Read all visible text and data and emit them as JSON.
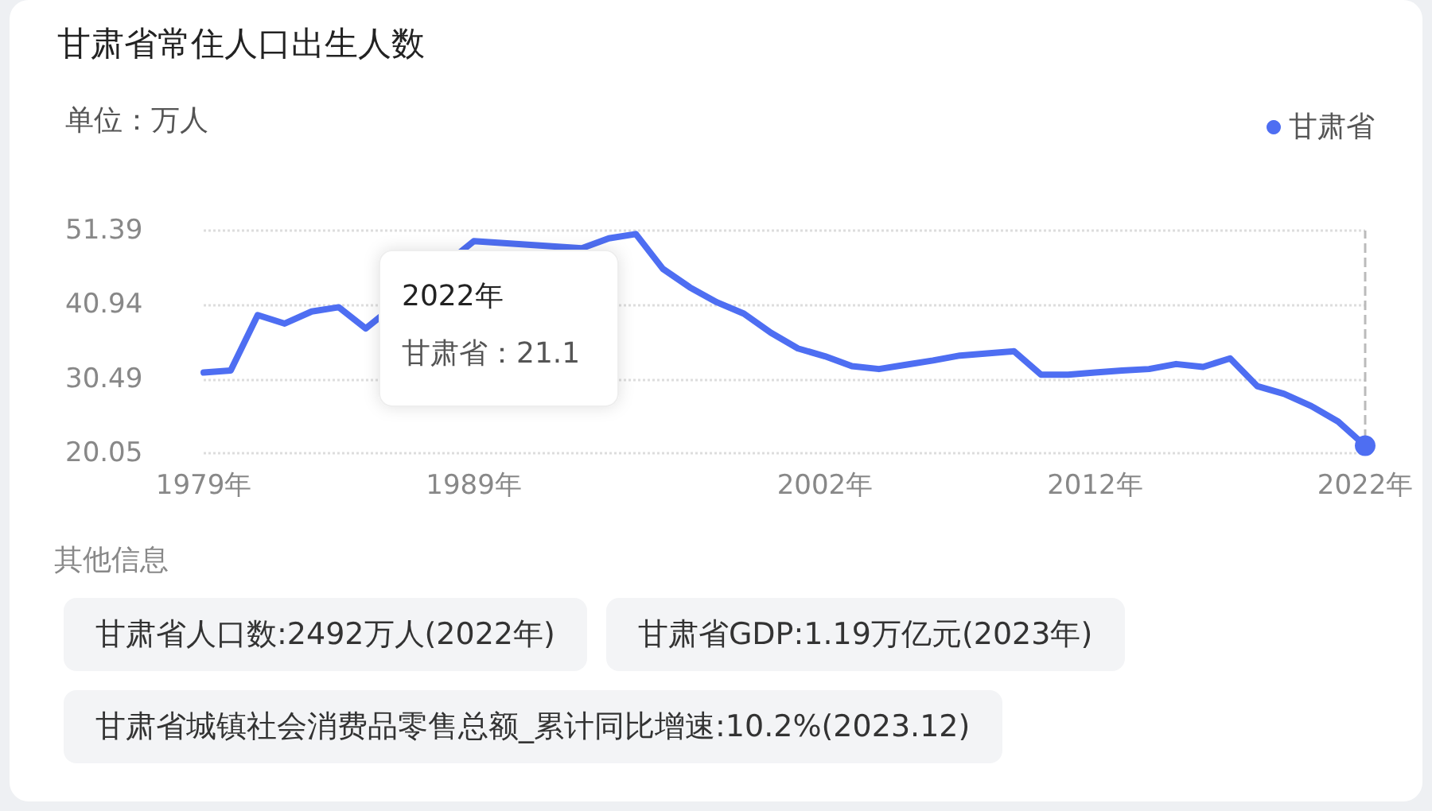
{
  "chart_data": {
    "type": "line",
    "title": "甘肃省常住人口出生人数",
    "categories": [
      "1979年",
      null,
      null,
      null,
      null,
      null,
      null,
      null,
      null,
      null,
      "1989年",
      null,
      null,
      null,
      null,
      null,
      null,
      null,
      null,
      null,
      null,
      null,
      null,
      "2002年",
      null,
      null,
      null,
      null,
      null,
      null,
      null,
      null,
      null,
      "2012年",
      null,
      null,
      null,
      null,
      null,
      null,
      null,
      null,
      null,
      "2022年"
    ],
    "series": [
      {
        "name": "甘肃省",
        "color": "#4e6ef2",
        "values": [
          31.4,
          31.7,
          39.5,
          38.3,
          40.0,
          40.6,
          37.6,
          null,
          null,
          null,
          49.9,
          null,
          null,
          null,
          48.9,
          50.3,
          50.9,
          46.0,
          43.4,
          41.3,
          39.7,
          37.0,
          34.8,
          33.7,
          32.3,
          31.9,
          32.5,
          33.1,
          33.8,
          34.1,
          34.4,
          31.1,
          31.1,
          31.4,
          31.7,
          31.9,
          32.6,
          32.2,
          33.4,
          29.5,
          28.4,
          26.7,
          24.5,
          21.1
        ]
      }
    ],
    "ylim": [
      20.05,
      51.39
    ],
    "yticks": [
      20.05,
      30.49,
      40.94,
      51.39
    ],
    "grid": "y",
    "legend": "top right",
    "marker": "none",
    "ref_lines": [
      {
        "axis": "x",
        "value": "2022年",
        "color": "#bbbbbb",
        "line_style": "dashed"
      }
    ],
    "annotations": [
      "单位：万人",
      "2022年",
      "甘肃省：21.1",
      "其他信息",
      "甘肃省人口数:2492万人(2022年)",
      "甘肃省GDP:1.19万亿元(2023年)",
      "甘肃省城镇社会消费品零售总额_累计同比增速:10.2%(2023.12)"
    ]
  }
}
